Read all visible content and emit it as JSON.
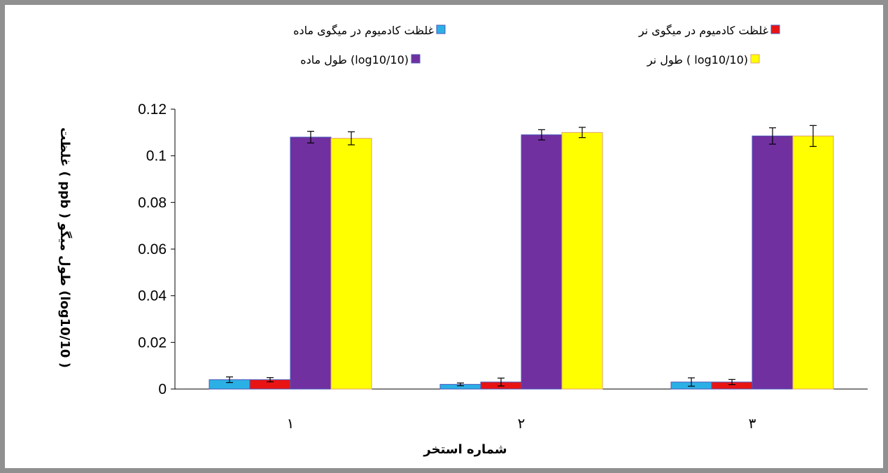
{
  "chart_data": {
    "type": "bar",
    "title": "",
    "xlabel": "شماره استخر",
    "ylabel": "غلظت ( ppb ) طول میگو (log10/10 )",
    "ylim": [
      0,
      0.12
    ],
    "yticks": [
      0,
      0.02,
      0.04,
      0.06,
      0.08,
      0.1,
      0.12
    ],
    "ytick_labels": [
      "0",
      "0.02",
      "0.04",
      "0.06",
      "0.08",
      "0.1",
      "0.12"
    ],
    "categories": [
      "۱",
      "۲",
      "۳"
    ],
    "grid": false,
    "legend_placement": "top",
    "series": [
      {
        "name": "غلظت کادمیوم در میگوی ماده",
        "color": "#2bb0e6",
        "edge": "#4a56b8",
        "values": [
          0.004,
          0.002,
          0.003
        ],
        "errors": [
          0.0012,
          0.0006,
          0.0018
        ]
      },
      {
        "name": "غلظت کادمیوم در میگوی نر",
        "color": "#e81414",
        "edge": "#4a56b8",
        "values": [
          0.004,
          0.003,
          0.003
        ],
        "errors": [
          0.0009,
          0.0017,
          0.0011
        ]
      },
      {
        "name": "طول ماده (log10/10)",
        "color": "#7030a0",
        "edge": "#4a56b8",
        "values": [
          0.108,
          0.109,
          0.1085
        ],
        "errors": [
          0.0025,
          0.0022,
          0.0035
        ]
      },
      {
        "name": "طول نر ( log10/10)",
        "color": "#ffff00",
        "edge": "#e0a070",
        "values": [
          0.1075,
          0.11,
          0.1085
        ],
        "errors": [
          0.0028,
          0.0022,
          0.0045
        ]
      }
    ]
  }
}
